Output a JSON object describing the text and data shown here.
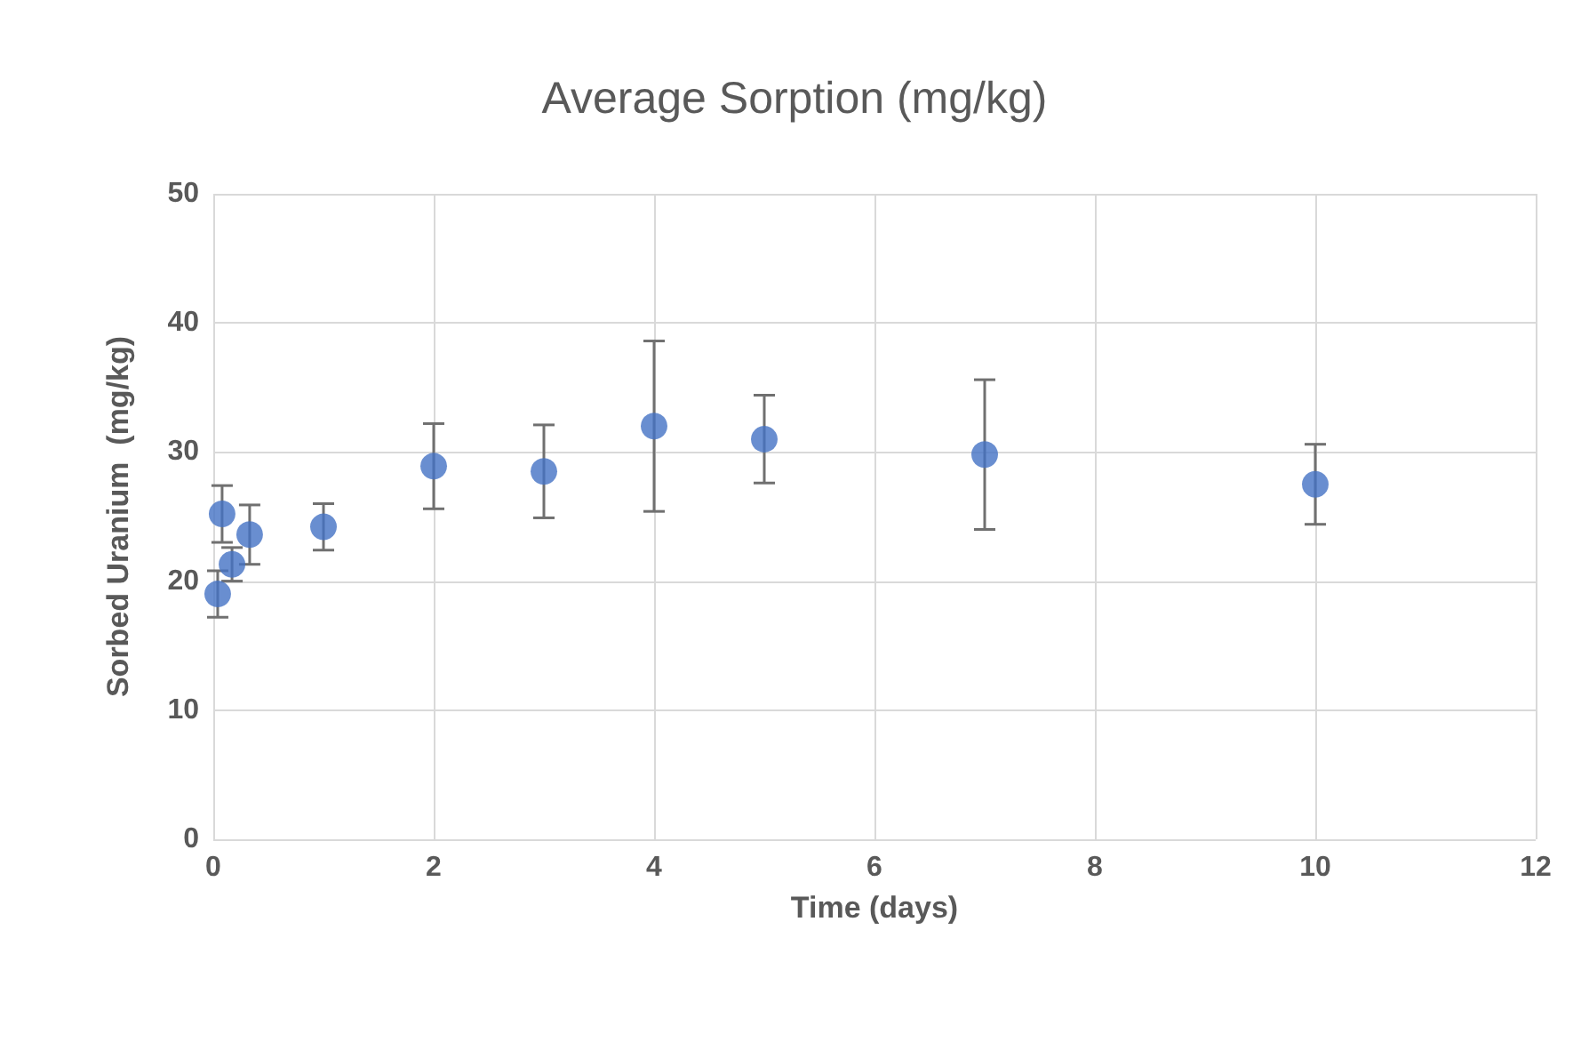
{
  "chart_data": {
    "type": "scatter",
    "title": "Average Sorption (mg/kg)",
    "xlabel": "Time (days)",
    "ylabel": "Sorbed Uranium  (mg/kg)",
    "x": [
      0.04,
      0.08,
      0.17,
      0.33,
      1,
      2,
      3,
      4,
      5,
      7,
      10
    ],
    "values": [
      19.0,
      25.2,
      21.3,
      23.6,
      24.2,
      28.9,
      28.5,
      32.0,
      31.0,
      29.8,
      27.5
    ],
    "errors": [
      1.8,
      2.2,
      1.3,
      2.3,
      1.8,
      3.3,
      3.6,
      6.6,
      3.4,
      5.8,
      3.1
    ],
    "color": "#4472c4",
    "marker": "circle",
    "xlim": [
      0,
      12
    ],
    "xticks": [
      0,
      2,
      4,
      6,
      8,
      10,
      12
    ],
    "ylim": [
      0,
      50
    ],
    "yticks": [
      0,
      10,
      20,
      30,
      40,
      50
    ],
    "grid": true
  }
}
